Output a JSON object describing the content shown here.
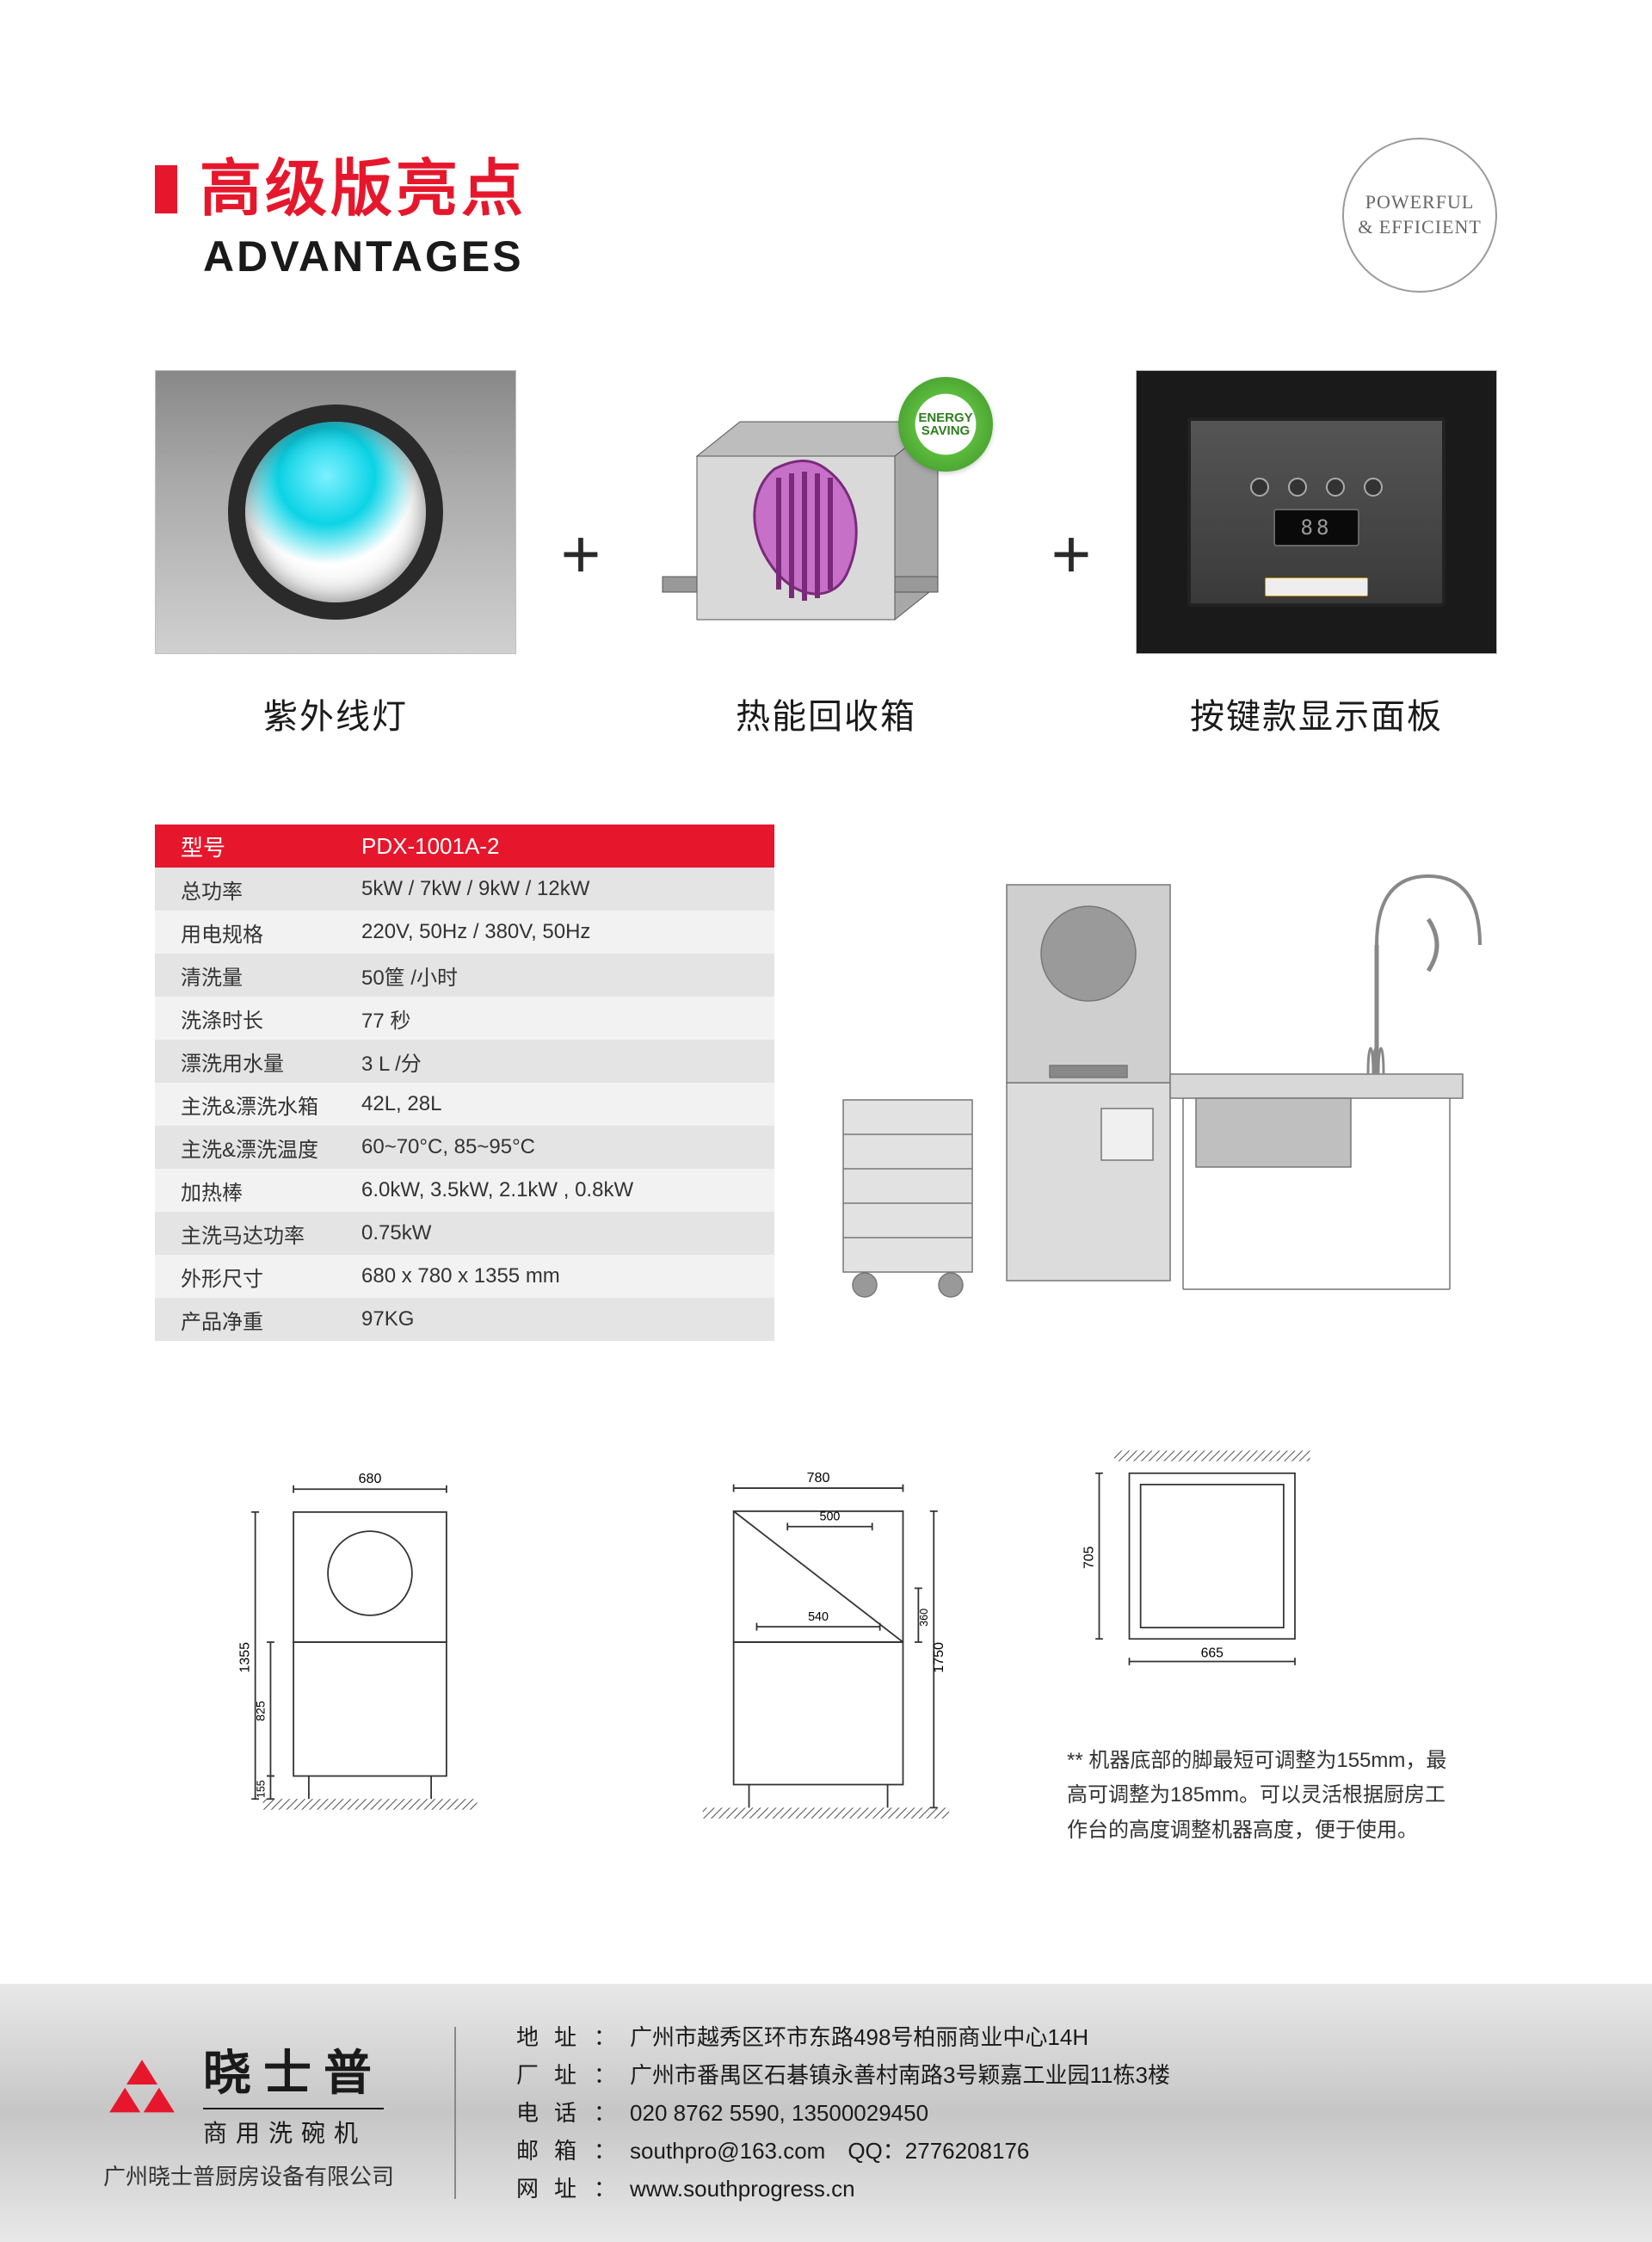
{
  "title": {
    "cn": "高级版亮点",
    "en": "ADVANTAGES"
  },
  "stamp": {
    "line1": "POWERFUL",
    "line2": "& EFFICIENT"
  },
  "features": [
    {
      "caption": "紫外线灯"
    },
    {
      "caption": "热能回收箱",
      "badge": "ENERGY SAVING"
    },
    {
      "caption": "按键款显示面板",
      "screen": "88"
    }
  ],
  "specs": {
    "header": {
      "label": "型号",
      "value": "PDX-1001A-2"
    },
    "rows": [
      {
        "label": "总功率",
        "value": "5kW / 7kW / 9kW / 12kW"
      },
      {
        "label": "用电规格",
        "value": "220V, 50Hz / 380V, 50Hz"
      },
      {
        "label": "清洗量",
        "value": "50筐 /小时"
      },
      {
        "label": "洗涤时长",
        "value": "77 秒"
      },
      {
        "label": "漂洗用水量",
        "value": "3 L /分"
      },
      {
        "label": "主洗&漂洗水箱",
        "value": "42L, 28L"
      },
      {
        "label": "主洗&漂洗温度",
        "value": "60~70°C, 85~95°C"
      },
      {
        "label": "加热棒",
        "value": "6.0kW, 3.5kW, 2.1kW , 0.8kW"
      },
      {
        "label": "主洗马达功率",
        "value": "0.75kW"
      },
      {
        "label": "外形尺寸",
        "value": "680 x 780 x 1355 mm"
      },
      {
        "label": "产品净重",
        "value": "97KG"
      }
    ]
  },
  "diagrams": {
    "front": {
      "w": "680",
      "h": "1355",
      "leg": "155",
      "body": "825"
    },
    "side": {
      "w": "780",
      "inner": "540",
      "h": "1750",
      "gap": "360",
      "arm": "500"
    },
    "top": {
      "w": "665",
      "d": "705"
    },
    "note": "机器底部的脚最短可调整为155mm，最高可调整为185mm。可以灵活根据厨房工作台的高度调整机器高度，便于使用。"
  },
  "footer": {
    "brand_cn": "晓士普",
    "brand_sub": "商用洗碗机",
    "company": "广州晓士普厨房设备有限公司",
    "contacts": [
      {
        "label": "地址",
        "value": "广州市越秀区环市东路498号柏丽商业中心14H"
      },
      {
        "label": "厂址",
        "value": "广州市番禺区石碁镇永善村南路3号颖嘉工业园11栋3楼"
      },
      {
        "label": "电话",
        "value": "020 8762 5590, 13500029450"
      },
      {
        "label": "邮箱",
        "value": "southpro@163.com　QQ：2776208176"
      },
      {
        "label": "网址",
        "value": "www.southprogress.cn"
      }
    ]
  },
  "colors": {
    "accent": "#e6172c",
    "text": "#1a1a1a",
    "row_odd": "#e4e4e4",
    "row_even": "#f2f2f2",
    "footer_grad_a": "#e8e8e8",
    "footer_grad_b": "#c6c6c6"
  }
}
